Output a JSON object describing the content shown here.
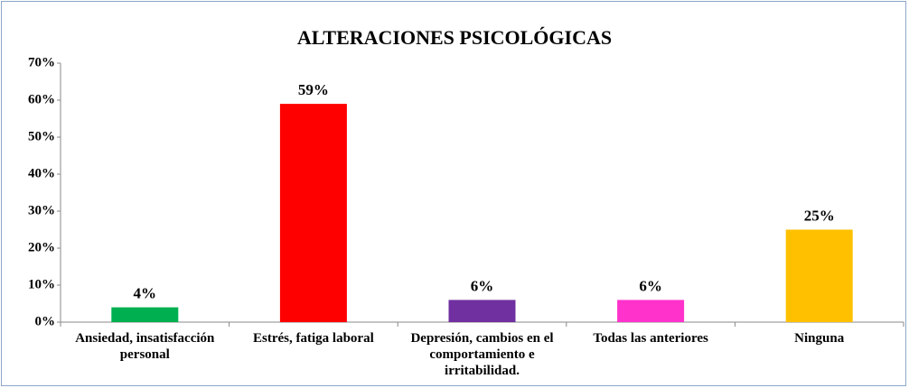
{
  "chart_data": {
    "type": "bar",
    "title": "ALTERACIONES PSICOLÓGICAS",
    "categories": [
      "Ansiedad, insatisfacción personal",
      "Estrés, fatiga laboral",
      "Depresión, cambios en el comportamiento e irritabilidad.",
      "Todas las anteriores",
      "Ninguna"
    ],
    "values": [
      4,
      59,
      6,
      6,
      25
    ],
    "value_labels": [
      "4%",
      "59%",
      "6%",
      "6%",
      "25%"
    ],
    "colors": [
      "#00b050",
      "#ff0000",
      "#7030a0",
      "#ff33cc",
      "#ffc000"
    ],
    "ylim": [
      0,
      70
    ],
    "yticks": [
      {
        "value": 0,
        "label": "0%"
      },
      {
        "value": 10,
        "label": "10%"
      },
      {
        "value": 20,
        "label": "20%"
      },
      {
        "value": 30,
        "label": "30%"
      },
      {
        "value": 40,
        "label": "40%"
      },
      {
        "value": 50,
        "label": "50%"
      },
      {
        "value": 60,
        "label": "60%"
      },
      {
        "value": 70,
        "label": "70%"
      }
    ],
    "grid": false
  }
}
